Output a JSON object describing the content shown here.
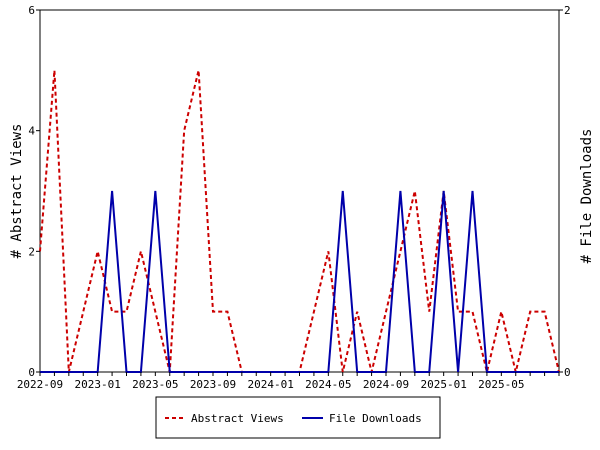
{
  "chart_data": {
    "type": "line",
    "xlabel": "",
    "ylabel_left": "# Abstract Views",
    "ylabel_right": "# File Downloads",
    "ylim_left": [
      0,
      6
    ],
    "ylim_right": [
      0,
      2
    ],
    "yticks_left": [
      "0",
      "2",
      "4",
      "6"
    ],
    "yticks_right": [
      "0",
      "2"
    ],
    "xticks": [
      "2022-09",
      "2023-01",
      "2023-05",
      "2023-09",
      "2024-01",
      "2024-05",
      "2024-09",
      "2025-01",
      "2025-05"
    ],
    "x": [
      "2022-09",
      "2022-10",
      "2022-11",
      "2022-12",
      "2023-01",
      "2023-02",
      "2023-03",
      "2023-04",
      "2023-05",
      "2023-06",
      "2023-07",
      "2023-08",
      "2023-09",
      "2023-10",
      "2023-11",
      "2023-12",
      "2024-01",
      "2024-02",
      "2024-03",
      "2024-04",
      "2024-05",
      "2024-06",
      "2024-07",
      "2024-08",
      "2024-09",
      "2024-10",
      "2024-11",
      "2024-12",
      "2025-01",
      "2025-02",
      "2025-03",
      "2025-04",
      "2025-05",
      "2025-06",
      "2025-07",
      "2025-08",
      "2025-09"
    ],
    "series": [
      {
        "name": "Abstract Views",
        "axis": "left",
        "color": "#cc0000",
        "dash": "dashed",
        "values": [
          2,
          5,
          0,
          1,
          2,
          1,
          1,
          2,
          1,
          0,
          4,
          5,
          1,
          1,
          0,
          0,
          0,
          0,
          0,
          1,
          2,
          0,
          1,
          0,
          1,
          2,
          3,
          1,
          3,
          1,
          1,
          0,
          1,
          0,
          1,
          1,
          0
        ]
      },
      {
        "name": "File Downloads",
        "axis": "right",
        "color": "#0000aa",
        "dash": "solid",
        "values": [
          0,
          0,
          0,
          0,
          0,
          1,
          0,
          0,
          1,
          0,
          0,
          0,
          0,
          0,
          0,
          0,
          0,
          0,
          0,
          0,
          0,
          1,
          0,
          0,
          0,
          1,
          0,
          0,
          1,
          0,
          1,
          0,
          0,
          0,
          0,
          0,
          0
        ]
      }
    ],
    "legend": "bottom",
    "grid": false
  }
}
